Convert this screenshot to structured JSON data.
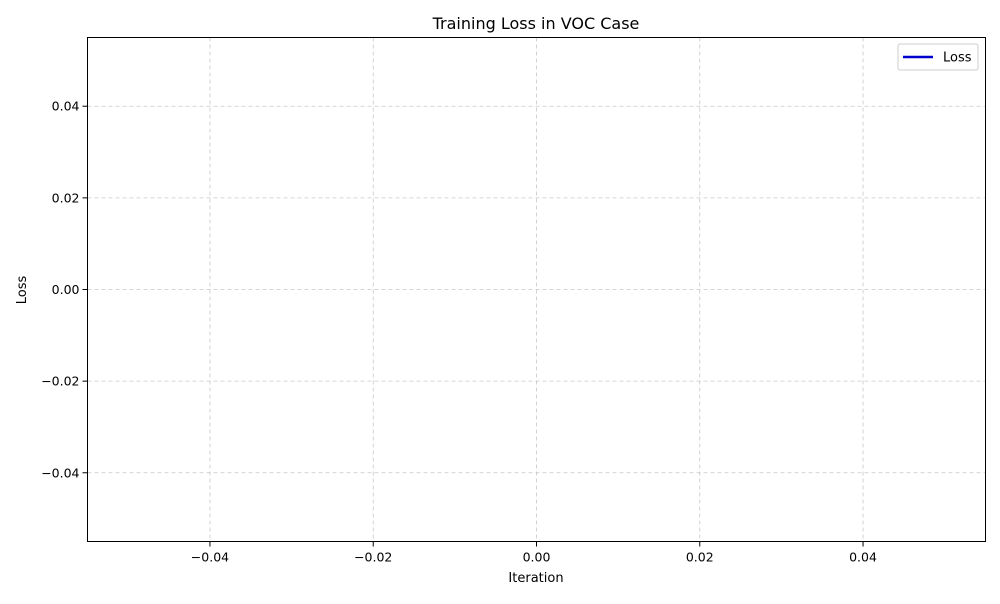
{
  "chart_data": {
    "type": "line",
    "title": "Training Loss in VOC Case",
    "xlabel": "Iteration",
    "ylabel": "Loss",
    "xlim": [
      -0.055,
      0.055
    ],
    "ylim": [
      -0.055,
      0.055
    ],
    "x_ticks": [
      -0.04,
      -0.02,
      0.0,
      0.02,
      0.04
    ],
    "x_tick_labels": [
      "−0.04",
      "−0.02",
      "0.00",
      "0.02",
      "0.04"
    ],
    "y_ticks": [
      -0.04,
      -0.02,
      0.0,
      0.02,
      0.04
    ],
    "y_tick_labels": [
      "−0.04",
      "−0.02",
      "0.00",
      "0.02",
      "0.04"
    ],
    "grid": true,
    "grid_style": "dashed",
    "legend_position": "top-right",
    "series": [
      {
        "name": "Loss",
        "color": "#0000cc",
        "x": [],
        "y": []
      }
    ]
  }
}
